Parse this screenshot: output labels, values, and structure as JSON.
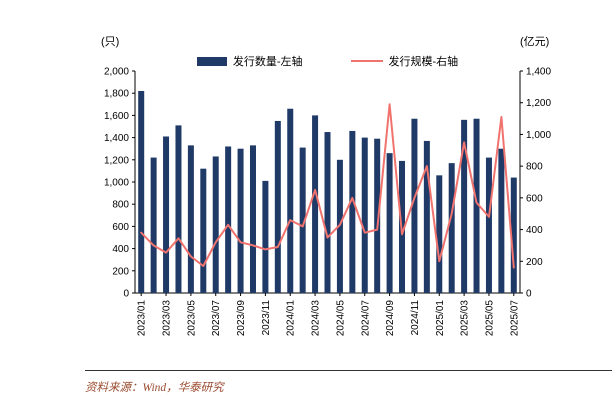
{
  "page": {
    "left_axis_unit": "(只)",
    "right_axis_unit": "(亿元)",
    "source": "资料来源：Wind，华泰研究"
  },
  "legend": [
    {
      "label": "发行数量-左轴",
      "type": "bar",
      "color": "#1f3a67"
    },
    {
      "label": "发行规模-右轴",
      "type": "line",
      "color": "#f0736e"
    }
  ],
  "chart_data": {
    "type": "bar",
    "subtype": "bar+line combo, dual axis",
    "title": "",
    "categories": [
      "2023/01",
      "2023/02",
      "2023/03",
      "2023/04",
      "2023/05",
      "2023/06",
      "2023/07",
      "2023/08",
      "2023/09",
      "2023/10",
      "2023/11",
      "2023/12",
      "2024/01",
      "2024/02",
      "2024/03",
      "2024/04",
      "2024/05",
      "2024/06",
      "2024/07",
      "2024/08",
      "2024/09",
      "2024/10",
      "2024/11",
      "2024/12",
      "2025/01",
      "2025/02",
      "2025/03",
      "2025/04",
      "2025/05",
      "2025/06",
      "2025/07"
    ],
    "series": [
      {
        "name": "发行数量-左轴",
        "type": "bar",
        "axis": "left",
        "color": "#1f3a67",
        "values": [
          1820,
          1220,
          1410,
          1510,
          1330,
          1120,
          1230,
          1320,
          1300,
          1330,
          1010,
          1550,
          1660,
          1310,
          1600,
          1450,
          1200,
          1460,
          1400,
          1390,
          1260,
          1190,
          1570,
          1370,
          1060,
          1170,
          1560,
          1570,
          1220,
          1300,
          1040
        ]
      },
      {
        "name": "发行规模-右轴",
        "type": "line",
        "axis": "right",
        "color": "#f0736e",
        "values": [
          380,
          300,
          255,
          345,
          230,
          170,
          320,
          430,
          320,
          300,
          275,
          290,
          460,
          420,
          650,
          350,
          430,
          600,
          380,
          400,
          1190,
          370,
          600,
          800,
          200,
          500,
          950,
          570,
          480,
          1110,
          160
        ]
      }
    ],
    "left_axis": {
      "unit": "(只)",
      "min": 0,
      "max": 2000,
      "step": 200
    },
    "right_axis": {
      "unit": "(亿元)",
      "min": 0,
      "max": 1400,
      "step": 200
    },
    "x_tick_every": 2,
    "grid": false,
    "legend_position": "top"
  }
}
